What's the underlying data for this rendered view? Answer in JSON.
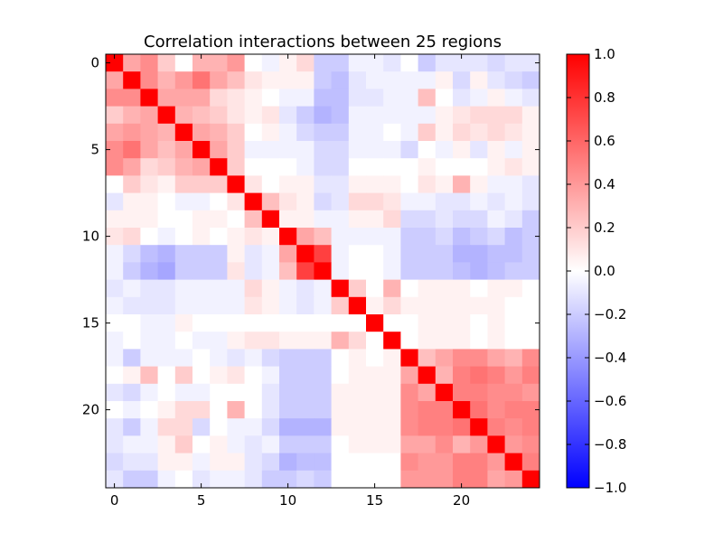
{
  "chart_data": {
    "type": "heatmap",
    "title": "Correlation interactions between 25 regions",
    "n": 25,
    "x_ticks": [
      0,
      5,
      10,
      15,
      20
    ],
    "y_ticks": [
      0,
      5,
      10,
      15,
      20
    ],
    "colorbar": {
      "colormap": "bwr",
      "vmin": -1.0,
      "vmax": 1.0,
      "ticks": [
        "1.0",
        "0.8",
        "0.6",
        "0.4",
        "0.2",
        "0.0",
        "−0.2",
        "−0.4",
        "−0.6",
        "−0.8",
        "−1.0"
      ],
      "tick_values": [
        1.0,
        0.8,
        0.6,
        0.4,
        0.2,
        0.0,
        -0.2,
        -0.4,
        -0.6,
        -0.8,
        -1.0
      ]
    },
    "matrix": [
      [
        1.0,
        0.35,
        0.45,
        0.2,
        0.0,
        0.3,
        0.3,
        0.4,
        0.0,
        -0.05,
        0.05,
        0.15,
        -0.2,
        -0.2,
        -0.05,
        -0.05,
        -0.1,
        0.0,
        -0.2,
        -0.1,
        -0.1,
        -0.1,
        -0.15,
        -0.1,
        -0.1
      ],
      [
        0.35,
        1.0,
        0.45,
        0.3,
        0.4,
        0.55,
        0.35,
        0.25,
        0.1,
        0.05,
        0.05,
        0.05,
        -0.2,
        -0.25,
        -0.1,
        -0.05,
        -0.05,
        -0.05,
        -0.05,
        0.05,
        -0.15,
        0.05,
        -0.1,
        -0.15,
        -0.2
      ],
      [
        0.45,
        0.45,
        1.0,
        0.35,
        0.35,
        0.35,
        0.15,
        0.1,
        0.05,
        0.0,
        -0.05,
        -0.05,
        -0.25,
        -0.25,
        -0.1,
        -0.1,
        -0.05,
        -0.05,
        0.25,
        0.0,
        -0.1,
        -0.05,
        0.05,
        -0.05,
        -0.1
      ],
      [
        0.2,
        0.3,
        0.35,
        1.0,
        0.3,
        0.25,
        0.2,
        0.1,
        0.05,
        0.1,
        -0.1,
        -0.2,
        -0.3,
        -0.25,
        -0.05,
        -0.05,
        -0.05,
        -0.05,
        -0.05,
        0.05,
        0.1,
        0.15,
        0.15,
        0.15,
        0.05
      ],
      [
        0.35,
        0.4,
        0.35,
        0.3,
        1.0,
        0.35,
        0.3,
        0.2,
        0.0,
        0.05,
        -0.05,
        -0.15,
        -0.2,
        -0.2,
        -0.05,
        -0.05,
        0.0,
        -0.05,
        0.2,
        0.05,
        0.15,
        0.1,
        0.15,
        0.1,
        0.05
      ],
      [
        0.45,
        0.55,
        0.35,
        0.25,
        0.35,
        1.0,
        0.35,
        0.2,
        -0.05,
        -0.05,
        -0.05,
        -0.05,
        -0.15,
        -0.15,
        -0.05,
        -0.05,
        -0.05,
        -0.15,
        0.0,
        -0.05,
        0.05,
        -0.1,
        0.05,
        -0.05,
        0.05
      ],
      [
        0.45,
        0.35,
        0.15,
        0.2,
        0.3,
        0.35,
        1.0,
        0.2,
        0.0,
        0.0,
        0.0,
        -0.05,
        -0.15,
        -0.15,
        0.0,
        0.0,
        0.0,
        0.0,
        0.05,
        0.0,
        0.0,
        0.0,
        0.05,
        0.1,
        0.05
      ],
      [
        0.0,
        0.2,
        0.1,
        0.05,
        0.2,
        0.2,
        0.2,
        1.0,
        0.1,
        0.0,
        0.05,
        0.05,
        -0.1,
        -0.1,
        0.05,
        0.05,
        0.05,
        0.0,
        0.1,
        0.05,
        0.3,
        0.05,
        -0.05,
        -0.05,
        -0.1
      ],
      [
        -0.1,
        0.05,
        0.05,
        0.0,
        -0.05,
        -0.05,
        0.0,
        0.1,
        1.0,
        0.25,
        0.1,
        0.05,
        -0.15,
        -0.1,
        0.15,
        0.15,
        0.1,
        -0.05,
        -0.05,
        -0.1,
        -0.1,
        -0.05,
        -0.1,
        -0.05,
        -0.1
      ],
      [
        0.05,
        0.05,
        0.05,
        0.0,
        0.0,
        0.05,
        0.05,
        0.0,
        0.25,
        1.0,
        0.05,
        0.05,
        -0.05,
        -0.05,
        0.05,
        0.05,
        0.15,
        -0.15,
        -0.15,
        -0.1,
        -0.15,
        -0.15,
        -0.05,
        -0.1,
        -0.2
      ],
      [
        0.1,
        0.15,
        0.0,
        -0.05,
        0.0,
        0.05,
        0.0,
        0.05,
        0.1,
        0.05,
        1.0,
        0.35,
        0.25,
        -0.05,
        -0.05,
        -0.05,
        -0.05,
        -0.2,
        -0.2,
        -0.15,
        -0.25,
        -0.2,
        -0.15,
        -0.25,
        -0.2
      ],
      [
        -0.05,
        -0.15,
        -0.25,
        -0.3,
        -0.2,
        -0.2,
        -0.2,
        0.05,
        -0.1,
        -0.05,
        0.35,
        1.0,
        0.75,
        -0.05,
        0.0,
        0.0,
        -0.05,
        -0.2,
        -0.2,
        -0.2,
        -0.3,
        -0.3,
        -0.25,
        -0.25,
        -0.2
      ],
      [
        -0.05,
        -0.2,
        -0.3,
        -0.35,
        -0.2,
        -0.2,
        -0.2,
        0.1,
        -0.1,
        -0.05,
        0.25,
        0.75,
        1.0,
        -0.05,
        0.0,
        0.0,
        -0.05,
        -0.2,
        -0.2,
        -0.2,
        -0.25,
        -0.3,
        -0.25,
        -0.2,
        -0.2
      ],
      [
        -0.1,
        -0.05,
        -0.1,
        -0.1,
        -0.05,
        -0.05,
        -0.05,
        -0.05,
        0.15,
        0.05,
        -0.05,
        -0.1,
        -0.05,
        1.0,
        0.2,
        0.0,
        0.3,
        0.0,
        0.05,
        0.05,
        0.05,
        0.0,
        0.05,
        0.05,
        0.0
      ],
      [
        -0.05,
        -0.1,
        -0.1,
        -0.1,
        -0.05,
        -0.05,
        -0.05,
        -0.05,
        0.1,
        0.05,
        -0.05,
        -0.1,
        -0.05,
        0.2,
        1.0,
        0.05,
        0.15,
        0.05,
        0.05,
        0.05,
        0.05,
        0.05,
        0.05,
        0.0,
        0.0
      ],
      [
        0.0,
        0.0,
        -0.05,
        -0.05,
        0.05,
        0.0,
        0.0,
        0.0,
        0.0,
        0.0,
        0.0,
        0.0,
        0.0,
        0.0,
        0.0,
        1.0,
        0.0,
        0.0,
        0.05,
        0.05,
        0.05,
        0.0,
        0.05,
        0.0,
        0.0
      ],
      [
        -0.05,
        0.0,
        -0.05,
        -0.05,
        0.0,
        -0.05,
        -0.05,
        0.05,
        0.1,
        0.1,
        0.05,
        0.05,
        0.05,
        0.3,
        0.15,
        0.0,
        1.0,
        0.0,
        0.05,
        0.05,
        0.05,
        0.0,
        0.05,
        0.0,
        0.0
      ],
      [
        -0.05,
        -0.2,
        -0.05,
        -0.05,
        -0.05,
        0.0,
        -0.05,
        -0.1,
        -0.05,
        -0.15,
        -0.2,
        -0.2,
        -0.2,
        0.0,
        0.05,
        0.0,
        0.05,
        1.0,
        0.25,
        0.35,
        0.45,
        0.45,
        0.35,
        0.3,
        0.45
      ],
      [
        0.0,
        0.05,
        0.25,
        0.0,
        0.2,
        0.0,
        0.05,
        0.1,
        0.0,
        -0.05,
        -0.2,
        -0.2,
        -0.2,
        0.0,
        0.05,
        0.05,
        0.05,
        0.35,
        1.0,
        0.3,
        0.5,
        0.55,
        0.5,
        0.4,
        0.5
      ],
      [
        -0.1,
        -0.15,
        -0.05,
        0.0,
        -0.05,
        -0.05,
        0.0,
        0.0,
        0.0,
        -0.1,
        -0.2,
        -0.2,
        -0.2,
        0.05,
        0.05,
        0.05,
        0.05,
        0.45,
        0.35,
        1.0,
        0.5,
        0.5,
        0.45,
        0.45,
        0.4
      ],
      [
        0.0,
        -0.05,
        0.0,
        0.05,
        0.15,
        0.15,
        0.0,
        0.3,
        0.0,
        -0.1,
        -0.2,
        -0.2,
        -0.2,
        0.05,
        0.05,
        0.05,
        0.05,
        0.45,
        0.5,
        0.5,
        1.0,
        0.55,
        0.45,
        0.5,
        0.5
      ],
      [
        -0.1,
        -0.2,
        -0.05,
        0.15,
        0.15,
        -0.15,
        0.0,
        -0.05,
        -0.05,
        -0.15,
        -0.3,
        -0.3,
        -0.3,
        0.05,
        0.05,
        0.05,
        0.05,
        0.45,
        0.5,
        0.5,
        0.55,
        1.0,
        0.5,
        0.45,
        0.5
      ],
      [
        -0.1,
        -0.05,
        -0.05,
        0.05,
        0.2,
        0.0,
        0.05,
        -0.05,
        -0.1,
        -0.05,
        -0.2,
        -0.2,
        -0.2,
        0.0,
        0.05,
        0.05,
        0.05,
        0.35,
        0.35,
        0.45,
        0.3,
        0.4,
        1.0,
        0.4,
        0.45
      ],
      [
        -0.15,
        -0.1,
        -0.1,
        0.05,
        0.05,
        -0.05,
        0.05,
        0.05,
        -0.1,
        -0.15,
        -0.3,
        -0.25,
        -0.25,
        0.0,
        0.0,
        0.0,
        0.0,
        0.45,
        0.4,
        0.4,
        0.5,
        0.5,
        0.4,
        1.0,
        0.5
      ],
      [
        -0.1,
        -0.2,
        -0.2,
        -0.05,
        0.0,
        -0.1,
        -0.05,
        -0.05,
        -0.1,
        -0.2,
        -0.2,
        -0.15,
        -0.2,
        0.0,
        0.0,
        0.0,
        0.0,
        0.4,
        0.4,
        0.4,
        0.5,
        0.5,
        0.35,
        0.4,
        1.0
      ]
    ]
  }
}
